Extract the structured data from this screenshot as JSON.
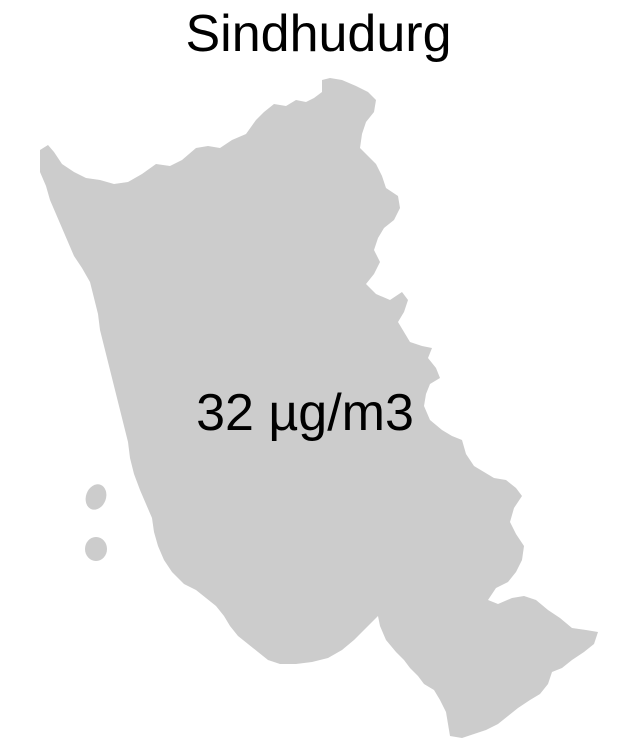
{
  "map": {
    "title": "Sindhudurg",
    "region_label": "32 µg/m3",
    "region_fill": "#cccccc",
    "background": "#ffffff"
  }
}
